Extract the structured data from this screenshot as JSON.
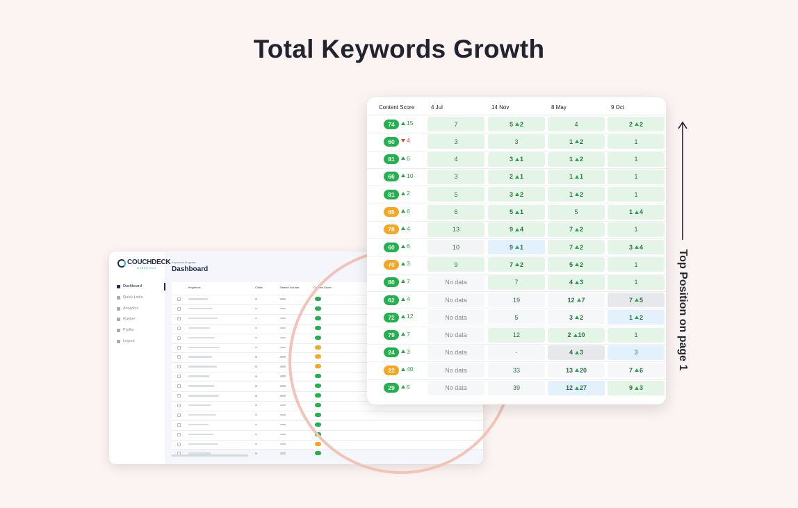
{
  "title": "Total Keywords Growth",
  "side_label": "Top Position on page 1",
  "dashboard": {
    "logo": "COUCHDECK",
    "logo_sub": "MARKETING",
    "breadcrumb": "Keywords Progress",
    "heading": "Dashboard",
    "nav": [
      "Dashboard",
      "Quick Links",
      "Analytics",
      "Ranker",
      "Profile",
      "Logout"
    ],
    "columns": [
      "Keywords",
      "Clicks",
      "Search Volume",
      "Content Score"
    ]
  },
  "table": {
    "columns": [
      "Content Score",
      "4 Jul",
      "14 Nov",
      "8 May",
      "9 Oct"
    ],
    "rows": [
      {
        "score": 74,
        "score_color": "#22b14c",
        "change": 15,
        "direction": "up",
        "cells": [
          {
            "value": 7,
            "color": "#e4f5e8"
          },
          {
            "value": 5,
            "change": 2,
            "color": "#e4f5e8"
          },
          {
            "value": 4,
            "color": "#e4f5e8"
          },
          {
            "value": 2,
            "change": 2,
            "color": "#e4f5e8"
          }
        ]
      },
      {
        "score": 60,
        "score_color": "#22b14c",
        "change": 4,
        "direction": "down",
        "cells": [
          {
            "value": 3,
            "color": "#e4f5e8"
          },
          {
            "value": 3,
            "color": "#e4f5e8"
          },
          {
            "value": 1,
            "change": 2,
            "color": "#e4f5e8"
          },
          {
            "value": 1,
            "color": "#e4f5e8"
          }
        ]
      },
      {
        "score": 81,
        "score_color": "#22b14c",
        "change": 6,
        "direction": "up",
        "cells": [
          {
            "value": 4,
            "color": "#e4f5e8"
          },
          {
            "value": 3,
            "change": 1,
            "color": "#e4f5e8"
          },
          {
            "value": 1,
            "change": 2,
            "color": "#e4f5e8"
          },
          {
            "value": 1,
            "color": "#e4f5e8"
          }
        ]
      },
      {
        "score": 66,
        "score_color": "#22b14c",
        "change": 10,
        "direction": "up",
        "cells": [
          {
            "value": 3,
            "color": "#e4f5e8"
          },
          {
            "value": 2,
            "change": 1,
            "color": "#e4f5e8"
          },
          {
            "value": 1,
            "change": 1,
            "color": "#e4f5e8"
          },
          {
            "value": 1,
            "color": "#e4f5e8"
          }
        ]
      },
      {
        "score": 81,
        "score_color": "#22b14c",
        "change": 2,
        "direction": "up",
        "cells": [
          {
            "value": 5,
            "color": "#e4f5e8"
          },
          {
            "value": 3,
            "change": 2,
            "color": "#e4f5e8"
          },
          {
            "value": 1,
            "change": 2,
            "color": "#e4f5e8"
          },
          {
            "value": 1,
            "color": "#e4f5e8"
          }
        ]
      },
      {
        "score": 65,
        "score_color": "#f6a623",
        "change": 6,
        "direction": "up",
        "cells": [
          {
            "value": 6,
            "color": "#e4f5e8"
          },
          {
            "value": 5,
            "change": 1,
            "color": "#e4f5e8"
          },
          {
            "value": 5,
            "color": "#e4f5e8"
          },
          {
            "value": 1,
            "change": 4,
            "color": "#e4f5e8"
          }
        ]
      },
      {
        "score": 78,
        "score_color": "#f6a623",
        "change": 4,
        "direction": "up",
        "cells": [
          {
            "value": 13,
            "color": "#e4f5e8"
          },
          {
            "value": 9,
            "change": 4,
            "color": "#e4f5e8"
          },
          {
            "value": 7,
            "change": 2,
            "color": "#e4f5e8"
          },
          {
            "value": 1,
            "color": "#e4f5e8"
          }
        ]
      },
      {
        "score": 60,
        "score_color": "#22b14c",
        "change": 6,
        "direction": "up",
        "cells": [
          {
            "value": 10,
            "color": "#f3f4f5"
          },
          {
            "value": 9,
            "change": 1,
            "color": "#e2f1fb"
          },
          {
            "value": 7,
            "change": 2,
            "color": "#e4f5e8"
          },
          {
            "value": 3,
            "change": 4,
            "color": "#e4f5e8"
          }
        ]
      },
      {
        "score": 70,
        "score_color": "#f6a623",
        "change": 3,
        "direction": "up",
        "cells": [
          {
            "value": 9,
            "color": "#e4f5e8"
          },
          {
            "value": 7,
            "change": 2,
            "color": "#e4f5e8"
          },
          {
            "value": 5,
            "change": 2,
            "color": "#e4f5e8"
          },
          {
            "value": 1,
            "color": "#e4f5e8"
          }
        ]
      },
      {
        "score": 80,
        "score_color": "#22b14c",
        "change": 7,
        "direction": "up",
        "cells": [
          {
            "value": "No data",
            "color": "#f6f7f8"
          },
          {
            "value": 7,
            "color": "#e4f5e8"
          },
          {
            "value": 4,
            "change": 3,
            "color": "#e4f5e8"
          },
          {
            "value": 1,
            "color": "#e4f5e8"
          }
        ]
      },
      {
        "score": 62,
        "score_color": "#22b14c",
        "change": 4,
        "direction": "up",
        "cells": [
          {
            "value": "No data",
            "color": "#f6f7f8"
          },
          {
            "value": 19,
            "color": "#f6f7f8"
          },
          {
            "value": 12,
            "change": 7,
            "color": "#f6f7f8"
          },
          {
            "value": 7,
            "change": 5,
            "color": "#e6e8eb"
          }
        ]
      },
      {
        "score": 72,
        "score_color": "#22b14c",
        "change": 12,
        "direction": "up",
        "cells": [
          {
            "value": "No data",
            "color": "#f6f7f8"
          },
          {
            "value": 5,
            "color": "#f6f7f8"
          },
          {
            "value": 3,
            "change": 2,
            "color": "#f6f7f8"
          },
          {
            "value": 1,
            "change": 2,
            "color": "#e2f1fb"
          }
        ]
      },
      {
        "score": 79,
        "score_color": "#22b14c",
        "change": 7,
        "direction": "up",
        "cells": [
          {
            "value": "No data",
            "color": "#f6f7f8"
          },
          {
            "value": 12,
            "color": "#e4f5e8"
          },
          {
            "value": 2,
            "change": 10,
            "color": "#e4f5e8"
          },
          {
            "value": 1,
            "color": "#e4f5e8"
          }
        ]
      },
      {
        "score": 24,
        "score_color": "#22b14c",
        "change": 3,
        "direction": "up",
        "cells": [
          {
            "value": "No data",
            "color": "#f6f7f8"
          },
          {
            "value": "-",
            "color": "#f6f7f8"
          },
          {
            "value": 4,
            "change": 3,
            "color": "#e6e8eb"
          },
          {
            "value": 3,
            "color": "#e2f1fb"
          }
        ]
      },
      {
        "score": 22,
        "score_color": "#f6a623",
        "change": 40,
        "direction": "up",
        "cells": [
          {
            "value": "No data",
            "color": "#f6f7f8"
          },
          {
            "value": 33,
            "color": "#f6f7f8"
          },
          {
            "value": 13,
            "change": 20,
            "color": "#f6f7f8"
          },
          {
            "value": 7,
            "change": 6,
            "color": "#f6f7f8"
          }
        ]
      },
      {
        "score": 29,
        "score_color": "#22b14c",
        "change": 5,
        "direction": "up",
        "cells": [
          {
            "value": "No data",
            "color": "#f6f7f8"
          },
          {
            "value": 39,
            "color": "#f6f7f8"
          },
          {
            "value": 12,
            "change": 27,
            "color": "#e2f1fb"
          },
          {
            "value": 9,
            "change": 3,
            "color": "#e4f5e8"
          }
        ]
      }
    ]
  }
}
